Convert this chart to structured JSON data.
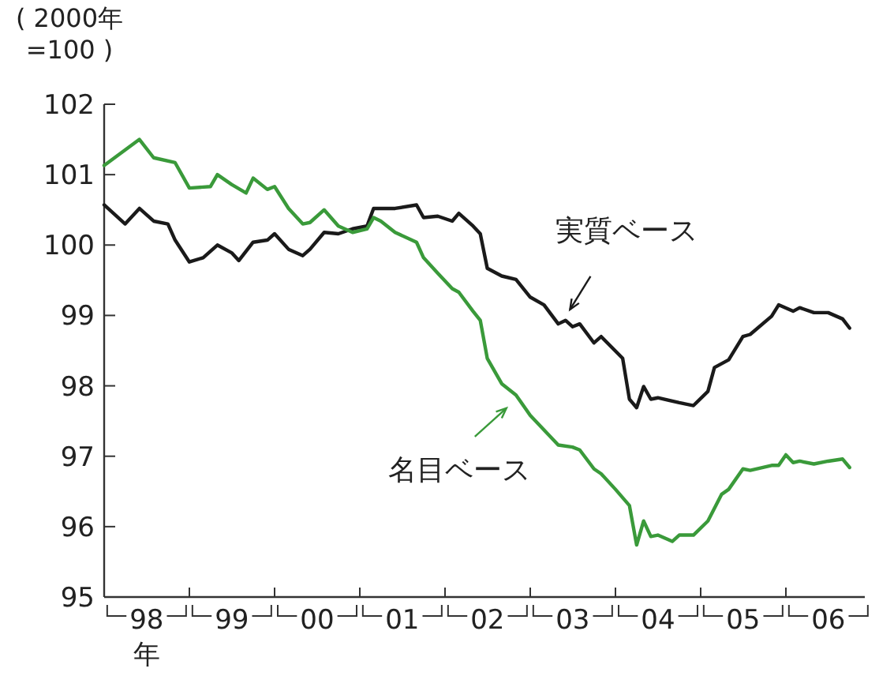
{
  "chart_data": {
    "type": "line",
    "ylabel": "( 2000年 =100 )",
    "xlabel": "年",
    "xlim": [
      "1998-01-01",
      "2006-12-05"
    ],
    "ylim": [
      95,
      102
    ],
    "yticks": [
      95,
      96,
      97,
      98,
      99,
      100,
      101,
      102
    ],
    "xticks": [
      {
        "value": "1998-01-01",
        "label": null
      },
      {
        "value": "1998-07-02",
        "label": "98"
      },
      {
        "value": "1999-01-01",
        "label": null
      },
      {
        "value": "1999-07-02",
        "label": "99"
      },
      {
        "value": "2000-01-01",
        "label": null
      },
      {
        "value": "2000-07-02",
        "label": "00"
      },
      {
        "value": "2001-01-01",
        "label": null
      },
      {
        "value": "2001-07-02",
        "label": "01"
      },
      {
        "value": "2002-01-01",
        "label": null
      },
      {
        "value": "2002-07-02",
        "label": "02"
      },
      {
        "value": "2003-01-01",
        "label": null
      },
      {
        "value": "2003-07-02",
        "label": "03"
      },
      {
        "value": "2004-01-01",
        "label": null
      },
      {
        "value": "2004-07-02",
        "label": "04"
      },
      {
        "value": "2005-01-01",
        "label": null
      },
      {
        "value": "2005-07-02",
        "label": "05"
      },
      {
        "value": "2006-01-01",
        "label": null
      },
      {
        "value": "2006-07-02",
        "label": "06"
      }
    ],
    "grid": false,
    "marker": "none",
    "line_style": "solid",
    "series": [
      {
        "name": "実質ベース",
        "color": "#1a1a1a",
        "x": [
          "1998-01",
          "1998-04",
          "1998-06",
          "1998-08",
          "1998-10",
          "1998-11",
          "1999-01",
          "1999-03",
          "1999-05",
          "1999-07",
          "1999-08",
          "1999-10",
          "1999-12",
          "2000-01",
          "2000-03",
          "2000-05",
          "2000-06",
          "2000-08",
          "2000-10",
          "2000-12",
          "2001-02",
          "2001-03",
          "2001-04",
          "2001-06",
          "2001-09",
          "2001-10",
          "2001-12",
          "2002-02",
          "2002-03",
          "2002-05",
          "2002-06",
          "2002-07",
          "2002-09",
          "2002-11",
          "2003-01",
          "2003-03",
          "2003-05",
          "2003-06",
          "2003-07",
          "2003-08",
          "2003-10",
          "2003-11",
          "2004-02",
          "2004-03",
          "2004-04",
          "2004-05",
          "2004-06",
          "2004-07",
          "2004-10",
          "2004-12",
          "2005-02",
          "2005-03",
          "2005-05",
          "2005-07",
          "2005-08",
          "2005-11",
          "2005-12",
          "2006-02",
          "2006-03",
          "2006-05",
          "2006-07",
          "2006-09",
          "2006-10"
        ],
        "values": [
          100.57,
          100.3,
          100.52,
          100.34,
          100.3,
          100.07,
          99.76,
          99.82,
          100.0,
          99.89,
          99.78,
          100.04,
          100.07,
          100.16,
          99.94,
          99.85,
          99.94,
          100.18,
          100.16,
          100.23,
          100.27,
          100.52,
          100.52,
          100.52,
          100.57,
          100.39,
          100.41,
          100.34,
          100.45,
          100.27,
          100.16,
          99.67,
          99.56,
          99.51,
          99.26,
          99.15,
          98.88,
          98.93,
          98.84,
          98.88,
          98.61,
          98.7,
          98.39,
          97.81,
          97.69,
          97.99,
          97.81,
          97.83,
          97.76,
          97.72,
          97.92,
          98.26,
          98.37,
          98.7,
          98.73,
          98.99,
          99.15,
          99.06,
          99.11,
          99.04,
          99.04,
          98.95,
          98.82
        ]
      },
      {
        "name": "名目ベース",
        "color": "#3a9a3a",
        "x": [
          "1998-01",
          "1998-06",
          "1998-08",
          "1998-11",
          "1999-01",
          "1999-04",
          "1999-05",
          "1999-07",
          "1999-09",
          "1999-10",
          "1999-12",
          "2000-01",
          "2000-03",
          "2000-05",
          "2000-06",
          "2000-08",
          "2000-10",
          "2000-12",
          "2001-02",
          "2001-03",
          "2001-04",
          "2001-06",
          "2001-09",
          "2001-10",
          "2001-12",
          "2002-02",
          "2002-03",
          "2002-05",
          "2002-06",
          "2002-07",
          "2002-09",
          "2002-11",
          "2003-01",
          "2003-05",
          "2003-07",
          "2003-08",
          "2003-10",
          "2003-11",
          "2004-01",
          "2004-03",
          "2004-04",
          "2004-05",
          "2004-06",
          "2004-07",
          "2004-09",
          "2004-10",
          "2004-12",
          "2005-02",
          "2005-04",
          "2005-05",
          "2005-07",
          "2005-08",
          "2005-11",
          "2005-12",
          "2006-01",
          "2006-02",
          "2006-03",
          "2006-05",
          "2006-07",
          "2006-09",
          "2006-10"
        ],
        "values": [
          101.13,
          101.5,
          101.24,
          101.17,
          100.81,
          100.83,
          101.0,
          100.86,
          100.74,
          100.95,
          100.79,
          100.83,
          100.52,
          100.3,
          100.32,
          100.5,
          100.27,
          100.18,
          100.23,
          100.39,
          100.34,
          100.18,
          100.04,
          99.82,
          99.6,
          99.38,
          99.33,
          99.06,
          98.93,
          98.39,
          98.03,
          97.87,
          97.58,
          97.16,
          97.13,
          97.09,
          96.82,
          96.75,
          96.53,
          96.3,
          95.74,
          96.08,
          95.86,
          95.88,
          95.79,
          95.88,
          95.88,
          96.08,
          96.46,
          96.53,
          96.82,
          96.8,
          96.87,
          96.87,
          97.02,
          96.91,
          96.93,
          96.89,
          96.93,
          96.96,
          96.84
        ]
      }
    ]
  }
}
